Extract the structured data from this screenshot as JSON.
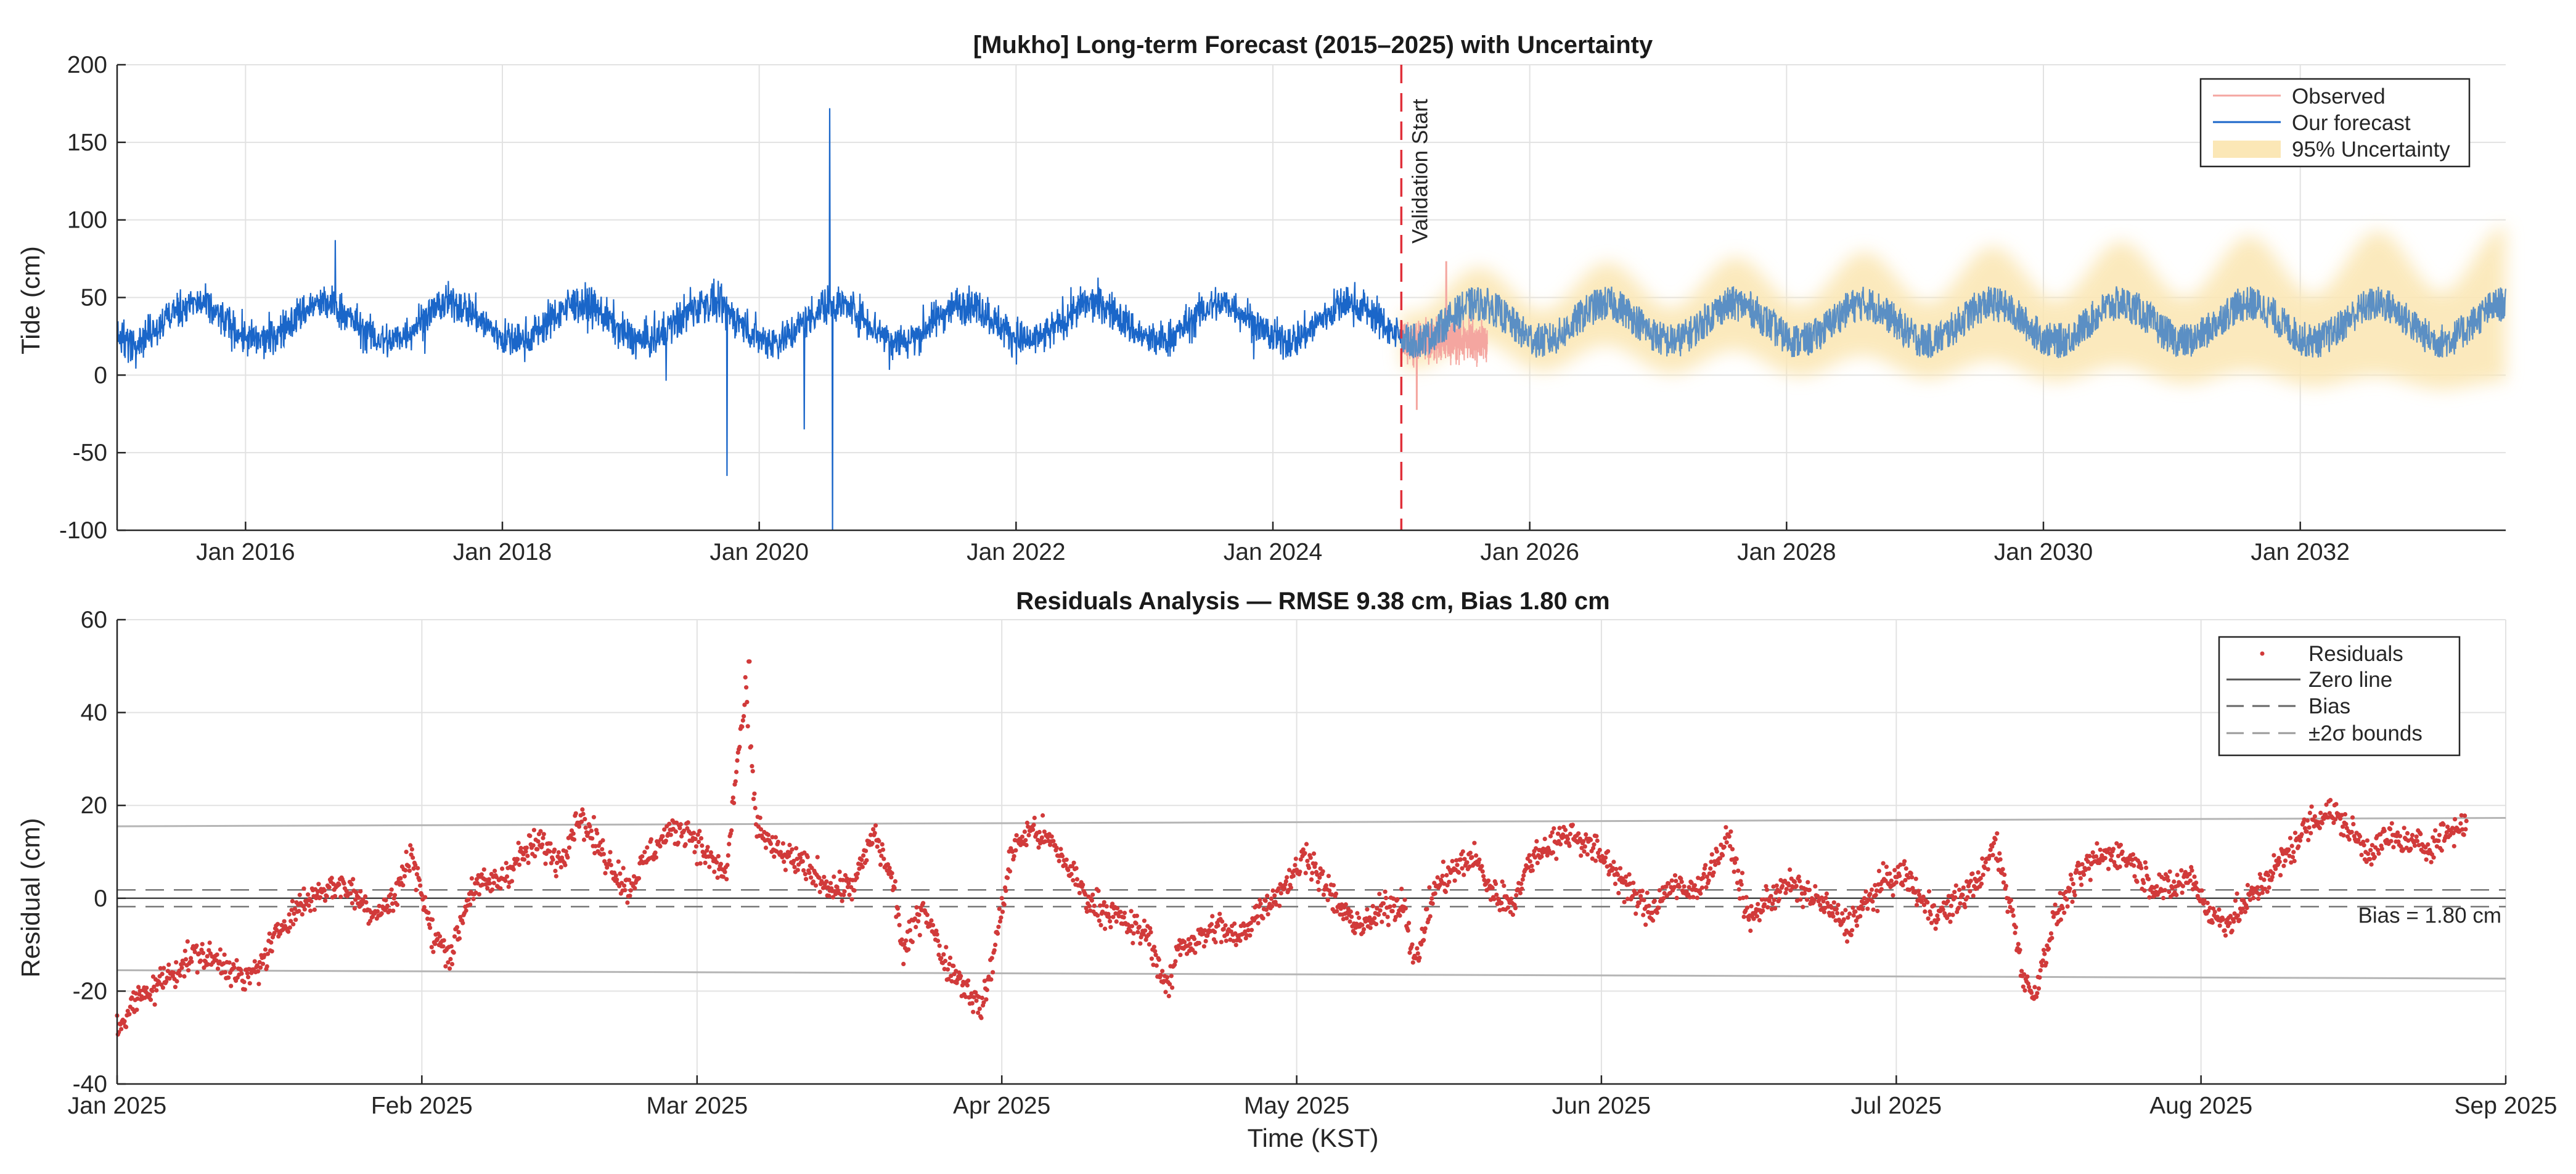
{
  "chart_data": [
    {
      "type": "line",
      "title": "[Mukho] Long-term Forecast (2015–2025) with Uncertainty",
      "xlabel": "",
      "ylabel": "Tide (cm)",
      "xlim": [
        2015.0,
        2033.6
      ],
      "ylim": [
        -100,
        200
      ],
      "yticks": [
        200,
        150,
        100,
        50,
        0,
        -50,
        -100
      ],
      "xticks": [
        {
          "label": "Jan 2016",
          "t": 2016.0
        },
        {
          "label": "Jan 2018",
          "t": 2018.0
        },
        {
          "label": "Jan 2020",
          "t": 2020.0
        },
        {
          "label": "Jan 2022",
          "t": 2022.0
        },
        {
          "label": "Jan 2024",
          "t": 2024.0
        },
        {
          "label": "Jan 2026",
          "t": 2026.0
        },
        {
          "label": "Jan 2028",
          "t": 2028.0
        },
        {
          "label": "Jan 2030",
          "t": 2030.0
        },
        {
          "label": "Jan 2032",
          "t": 2032.0
        }
      ],
      "grid": true,
      "legend_position": "top-right",
      "validation_start": {
        "t": 2025.0,
        "label": "Validation Start",
        "color": "#e0303a"
      },
      "series": [
        {
          "name": "Observed",
          "color": "#f4a6a0",
          "t_start": 2025.0,
          "t_end": 2025.67,
          "mean_cm": 22,
          "min_cm": -22,
          "max_cm": 73
        },
        {
          "name": "Our forecast",
          "color": "#1a66c9",
          "forecast_color": "#5b8fc4",
          "t_start": 2015.0,
          "t_end": 2033.6,
          "seasonal_mean_range_cm": [
            22,
            46
          ],
          "noise_cm": 12,
          "spikes_cm": [
            {
              "t": 2016.7,
              "value": 87
            },
            {
              "t": 2019.75,
              "value": -65
            },
            {
              "t": 2020.55,
              "value": 172
            },
            {
              "t": 2020.57,
              "value": -100
            },
            {
              "t": 2020.35,
              "value": -35
            }
          ]
        },
        {
          "name": "95% Uncertainty",
          "color": "#fbe7b6",
          "t_start": 2025.0,
          "t_end": 2033.6,
          "half_width_cm_start": 6,
          "half_width_cm_end": 30
        }
      ]
    },
    {
      "type": "scatter",
      "title": "Residuals Analysis — RMSE 9.38 cm, Bias 1.80 cm",
      "xlabel": "Time (KST)",
      "ylabel": "Residual (cm)",
      "xlim": [
        "2025-01-01",
        "2025-09-01"
      ],
      "xlim_days": [
        0,
        243
      ],
      "ylim": [
        -40,
        60
      ],
      "yticks": [
        60,
        40,
        20,
        0,
        -20,
        -40
      ],
      "xticks": [
        {
          "label": "Jan 2025",
          "day": 0
        },
        {
          "label": "Feb 2025",
          "day": 31
        },
        {
          "label": "Mar 2025",
          "day": 59
        },
        {
          "label": "Apr 2025",
          "day": 90
        },
        {
          "label": "May 2025",
          "day": 120
        },
        {
          "label": "Jun 2025",
          "day": 151
        },
        {
          "label": "Jul 2025",
          "day": 181
        },
        {
          "label": "Aug 2025",
          "day": 212
        },
        {
          "label": "Sep 2025",
          "day": 243
        }
      ],
      "grid": true,
      "legend_position": "top-right",
      "rmse_cm": 9.38,
      "bias_cm": 1.8,
      "bias_label": "Bias = 1.80 cm",
      "sigma2_bounds_cm": {
        "upper_start": 15.5,
        "upper_end": 17.3,
        "lower_start": -15.5,
        "lower_end": -17.3
      },
      "residual_trend": [
        {
          "day": 0,
          "value": -28
        },
        {
          "day": 2,
          "value": -22
        },
        {
          "day": 5,
          "value": -17
        },
        {
          "day": 8,
          "value": -12
        },
        {
          "day": 11,
          "value": -14
        },
        {
          "day": 13,
          "value": -18
        },
        {
          "day": 15,
          "value": -13
        },
        {
          "day": 17,
          "value": -5
        },
        {
          "day": 19,
          "value": -1
        },
        {
          "day": 21,
          "value": 2
        },
        {
          "day": 23,
          "value": 3
        },
        {
          "day": 26,
          "value": -3
        },
        {
          "day": 28,
          "value": -1
        },
        {
          "day": 30,
          "value": 10
        },
        {
          "day": 32,
          "value": -8
        },
        {
          "day": 34,
          "value": -12
        },
        {
          "day": 36,
          "value": 2
        },
        {
          "day": 39,
          "value": 4
        },
        {
          "day": 41,
          "value": 9
        },
        {
          "day": 43,
          "value": 12
        },
        {
          "day": 45,
          "value": 8
        },
        {
          "day": 47,
          "value": 18
        },
        {
          "day": 49,
          "value": 11
        },
        {
          "day": 52,
          "value": 2
        },
        {
          "day": 54,
          "value": 9
        },
        {
          "day": 56,
          "value": 14
        },
        {
          "day": 58,
          "value": 15
        },
        {
          "day": 60,
          "value": 9
        },
        {
          "day": 62,
          "value": 5
        },
        {
          "day": 63,
          "value": 28
        },
        {
          "day": 64,
          "value": 44
        },
        {
          "day": 65,
          "value": 16
        },
        {
          "day": 67,
          "value": 10
        },
        {
          "day": 69,
          "value": 8
        },
        {
          "day": 71,
          "value": 5
        },
        {
          "day": 73,
          "value": 2
        },
        {
          "day": 75,
          "value": 3
        },
        {
          "day": 77,
          "value": 14
        },
        {
          "day": 79,
          "value": 3
        },
        {
          "day": 80,
          "value": -12
        },
        {
          "day": 82,
          "value": -1
        },
        {
          "day": 84,
          "value": -13
        },
        {
          "day": 86,
          "value": -18
        },
        {
          "day": 88,
          "value": -24
        },
        {
          "day": 89,
          "value": -14
        },
        {
          "day": 91,
          "value": 10
        },
        {
          "day": 93,
          "value": 15
        },
        {
          "day": 95,
          "value": 12
        },
        {
          "day": 97,
          "value": 6
        },
        {
          "day": 99,
          "value": -1
        },
        {
          "day": 101,
          "value": -3
        },
        {
          "day": 103,
          "value": -6
        },
        {
          "day": 105,
          "value": -8
        },
        {
          "day": 106,
          "value": -15
        },
        {
          "day": 107,
          "value": -20
        },
        {
          "day": 108,
          "value": -10
        },
        {
          "day": 110,
          "value": -9
        },
        {
          "day": 112,
          "value": -6
        },
        {
          "day": 114,
          "value": -9
        },
        {
          "day": 116,
          "value": -3
        },
        {
          "day": 118,
          "value": 1
        },
        {
          "day": 120,
          "value": 6
        },
        {
          "day": 121,
          "value": 10
        },
        {
          "day": 123,
          "value": 2
        },
        {
          "day": 125,
          "value": -4
        },
        {
          "day": 127,
          "value": -6
        },
        {
          "day": 129,
          "value": -2
        },
        {
          "day": 131,
          "value": -1
        },
        {
          "day": 132,
          "value": -15
        },
        {
          "day": 134,
          "value": 2
        },
        {
          "day": 136,
          "value": 6
        },
        {
          "day": 138,
          "value": 9
        },
        {
          "day": 140,
          "value": 1
        },
        {
          "day": 142,
          "value": -1
        },
        {
          "day": 144,
          "value": 9
        },
        {
          "day": 146,
          "value": 12
        },
        {
          "day": 148,
          "value": 14
        },
        {
          "day": 150,
          "value": 11
        },
        {
          "day": 152,
          "value": 7
        },
        {
          "day": 154,
          "value": 1
        },
        {
          "day": 156,
          "value": -3
        },
        {
          "day": 158,
          "value": 3
        },
        {
          "day": 160,
          "value": 1
        },
        {
          "day": 162,
          "value": 6
        },
        {
          "day": 164,
          "value": 13
        },
        {
          "day": 166,
          "value": -5
        },
        {
          "day": 168,
          "value": 0
        },
        {
          "day": 170,
          "value": 3
        },
        {
          "day": 172,
          "value": 1
        },
        {
          "day": 174,
          "value": -2
        },
        {
          "day": 176,
          "value": -6
        },
        {
          "day": 178,
          "value": -1
        },
        {
          "day": 180,
          "value": 4
        },
        {
          "day": 182,
          "value": 5
        },
        {
          "day": 184,
          "value": -2
        },
        {
          "day": 186,
          "value": -3
        },
        {
          "day": 188,
          "value": 1
        },
        {
          "day": 190,
          "value": 6
        },
        {
          "day": 191,
          "value": 12
        },
        {
          "day": 193,
          "value": -5
        },
        {
          "day": 194,
          "value": -18
        },
        {
          "day": 195,
          "value": -21
        },
        {
          "day": 197,
          "value": -5
        },
        {
          "day": 199,
          "value": 3
        },
        {
          "day": 201,
          "value": 8
        },
        {
          "day": 203,
          "value": 10
        },
        {
          "day": 205,
          "value": 8
        },
        {
          "day": 207,
          "value": 3
        },
        {
          "day": 209,
          "value": 2
        },
        {
          "day": 211,
          "value": 5
        },
        {
          "day": 213,
          "value": -4
        },
        {
          "day": 215,
          "value": -5
        },
        {
          "day": 217,
          "value": 0
        },
        {
          "day": 219,
          "value": 5
        },
        {
          "day": 221,
          "value": 10
        },
        {
          "day": 223,
          "value": 16
        },
        {
          "day": 225,
          "value": 19
        },
        {
          "day": 227,
          "value": 15
        },
        {
          "day": 229,
          "value": 10
        },
        {
          "day": 231,
          "value": 13
        },
        {
          "day": 233,
          "value": 12
        },
        {
          "day": 235,
          "value": 11
        },
        {
          "day": 237,
          "value": 14
        },
        {
          "day": 239,
          "value": 16
        }
      ],
      "points_per_day": 12,
      "point_color": "#d13a3a",
      "legend": [
        {
          "label": "Residuals",
          "style": "dot",
          "color": "#d13a3a"
        },
        {
          "label": "Zero line",
          "style": "solid",
          "color": "#555555"
        },
        {
          "label": "Bias",
          "style": "dashed",
          "color": "#666666"
        },
        {
          "label": "±2σ  bounds",
          "style": "dashed",
          "color": "#999999"
        }
      ]
    }
  ]
}
